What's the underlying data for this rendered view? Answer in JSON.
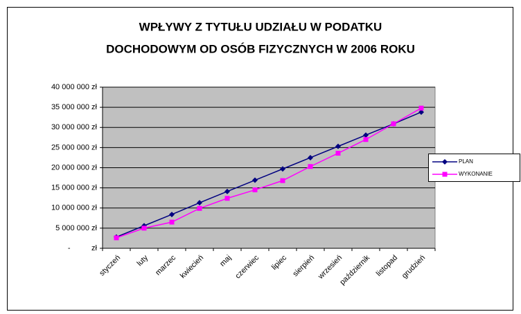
{
  "chart_data": {
    "type": "line",
    "title": [
      "WPŁYWY Z TYTUŁU UDZIAŁU W PODATKU",
      "DOCHODOWYM OD OSÓB FIZYCZNYCH W 2006 ROKU"
    ],
    "categories": [
      "styczeń",
      "luty",
      "marzec",
      "kwiecień",
      "maj",
      "czerwiec",
      "lipiec",
      "sierpień",
      "wrzesień",
      "październik",
      "listopad",
      "grudzień"
    ],
    "series": [
      {
        "name": "PLAN",
        "color": "#000080",
        "marker": "diamond",
        "values": [
          2800000,
          5600000,
          8400000,
          11300000,
          14100000,
          16900000,
          19700000,
          22500000,
          25300000,
          28100000,
          30900000,
          33800000
        ]
      },
      {
        "name": "WYKONANIE",
        "color": "#ff00ff",
        "marker": "square",
        "values": [
          2600000,
          5000000,
          6500000,
          9900000,
          12400000,
          14500000,
          16800000,
          20300000,
          23600000,
          27000000,
          30900000,
          34800000
        ]
      }
    ],
    "ylim": [
      0,
      40000000
    ],
    "yticks": [
      {
        "value": 0,
        "label": "-          zł"
      },
      {
        "value": 5000000,
        "label": "5 000 000 zł"
      },
      {
        "value": 10000000,
        "label": "10 000 000 zł"
      },
      {
        "value": 15000000,
        "label": "15 000 000 zł"
      },
      {
        "value": 20000000,
        "label": "20 000 000 zł"
      },
      {
        "value": 25000000,
        "label": "25 000 000 zł"
      },
      {
        "value": 30000000,
        "label": "30 000 000 zł"
      },
      {
        "value": 35000000,
        "label": "35 000 000 zł"
      },
      {
        "value": 40000000,
        "label": "40 000 000 zł"
      }
    ],
    "grid": true,
    "legend": "right",
    "plot_background": "#c0c0c0"
  }
}
